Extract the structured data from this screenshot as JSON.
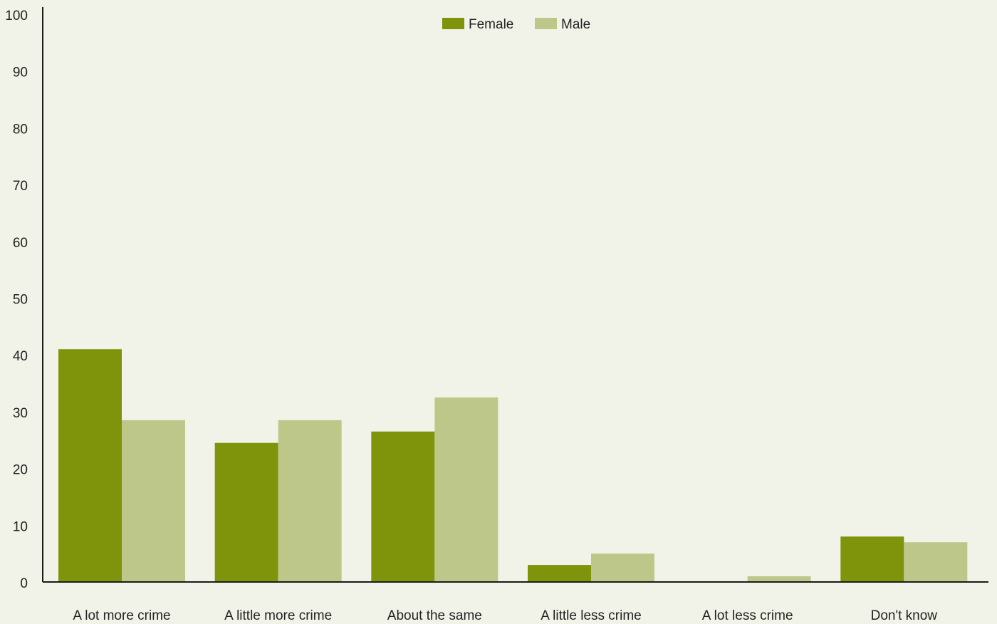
{
  "chart_data": {
    "type": "bar",
    "title": "",
    "xlabel": "",
    "ylabel": "",
    "ylim": [
      0,
      100
    ],
    "yticks": [
      0,
      10,
      20,
      30,
      40,
      50,
      60,
      70,
      80,
      90,
      100
    ],
    "grid": false,
    "legend_position": "top-center",
    "categories": [
      "A lot more crime",
      "A little more crime",
      "About the same",
      "A little less crime",
      "A lot less crime",
      "Don't know"
    ],
    "series": [
      {
        "name": "Female",
        "color": "#7f930b",
        "values": [
          41,
          24.5,
          26.5,
          3,
          0,
          8
        ]
      },
      {
        "name": "Male",
        "color": "#bec78a",
        "values": [
          28.5,
          28.5,
          32.5,
          5,
          1,
          7
        ]
      }
    ]
  }
}
